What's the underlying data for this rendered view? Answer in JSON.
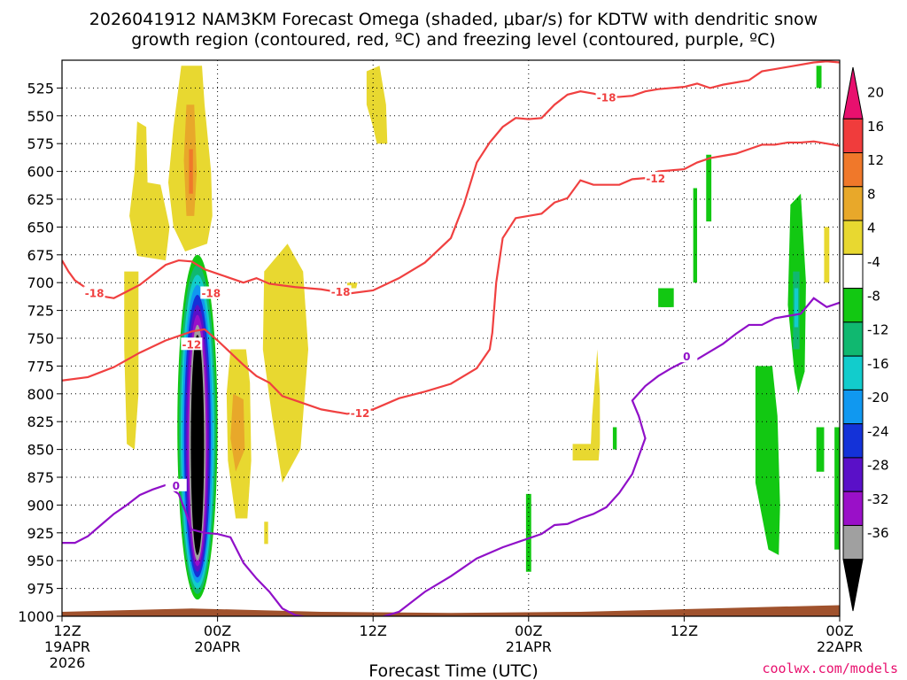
{
  "chart_data": {
    "type": "heatmap",
    "title_line1": "2026041912 NAM3KM Forecast Omega (shaded, μbar/s) for KDTW with dendritic snow",
    "title_line2": "growth region (contoured, red, ºC) and freezing level (contoured, purple, ºC)",
    "xlabel": "Forecast Time (UTC)",
    "credit": "coolwx.com/models",
    "x_range_hours": [
      0,
      60
    ],
    "y_range_hpa": [
      1000,
      500
    ],
    "x_ticks": [
      {
        "hour": 0,
        "label1": "12Z",
        "label2": "19APR",
        "label3": "2026"
      },
      {
        "hour": 12,
        "label1": "00Z",
        "label2": "20APR",
        "label3": ""
      },
      {
        "hour": 24,
        "label1": "12Z",
        "label2": "",
        "label3": ""
      },
      {
        "hour": 36,
        "label1": "00Z",
        "label2": "21APR",
        "label3": ""
      },
      {
        "hour": 48,
        "label1": "12Z",
        "label2": "",
        "label3": ""
      },
      {
        "hour": 60,
        "label1": "00Z",
        "label2": "22APR",
        "label3": ""
      }
    ],
    "y_ticks": [
      1000,
      975,
      950,
      925,
      900,
      875,
      850,
      825,
      800,
      775,
      750,
      725,
      700,
      675,
      650,
      625,
      600,
      575,
      550,
      525
    ],
    "colorbar": {
      "labels": [
        "20",
        "16",
        "12",
        "8",
        "4",
        "-4",
        "-8",
        "-12",
        "-16",
        "-20",
        "-24",
        "-28",
        "-32",
        "-36"
      ],
      "colors": [
        "#e8106e",
        "#f03c3c",
        "#f0782a",
        "#e8a82a",
        "#e8d830",
        "#ffffff",
        "#12c812",
        "#10b870",
        "#12cccc",
        "#1098f0",
        "#1432d8",
        "#5a10c8",
        "#9a10c8",
        "#a0a0a0",
        "#000000"
      ]
    },
    "dgz_contours": [
      {
        "label": "-18",
        "points": [
          [
            0,
            680
          ],
          [
            0.5,
            690
          ],
          [
            1,
            698
          ],
          [
            2,
            706
          ],
          [
            3,
            712
          ],
          [
            4,
            714
          ],
          [
            5,
            708
          ],
          [
            6,
            702
          ],
          [
            7,
            693
          ],
          [
            8,
            684
          ],
          [
            9,
            680
          ],
          [
            10,
            681
          ],
          [
            11,
            688
          ],
          [
            12,
            692
          ],
          [
            14,
            700
          ],
          [
            15,
            696
          ],
          [
            16,
            701
          ],
          [
            18,
            704
          ],
          [
            20,
            706
          ],
          [
            22,
            710
          ],
          [
            24,
            707
          ],
          [
            26,
            696
          ],
          [
            28,
            682
          ],
          [
            30,
            660
          ],
          [
            31,
            630
          ],
          [
            32,
            592
          ],
          [
            33,
            574
          ],
          [
            34,
            560
          ],
          [
            35,
            552
          ],
          [
            36,
            553
          ],
          [
            37,
            552
          ],
          [
            38,
            540
          ],
          [
            39,
            531
          ],
          [
            40,
            528
          ],
          [
            41,
            530
          ],
          [
            42,
            533
          ],
          [
            43,
            533
          ],
          [
            44,
            532
          ],
          [
            45,
            528
          ],
          [
            46,
            526
          ],
          [
            48,
            524
          ],
          [
            49,
            521
          ],
          [
            50,
            525
          ],
          [
            51,
            522
          ],
          [
            52,
            520
          ],
          [
            53,
            518
          ],
          [
            54,
            510
          ],
          [
            55,
            508
          ],
          [
            56,
            506
          ],
          [
            58,
            502
          ],
          [
            59,
            501
          ],
          [
            60,
            502
          ]
        ]
      },
      {
        "label": "-12",
        "points": [
          [
            0,
            788
          ],
          [
            2,
            785
          ],
          [
            4,
            776
          ],
          [
            6,
            763
          ],
          [
            8,
            752
          ],
          [
            10,
            744
          ],
          [
            11,
            742
          ],
          [
            12,
            752
          ],
          [
            13,
            763
          ],
          [
            14,
            774
          ],
          [
            15,
            784
          ],
          [
            16,
            790
          ],
          [
            17,
            802
          ],
          [
            18,
            806
          ],
          [
            20,
            814
          ],
          [
            22,
            818
          ],
          [
            24,
            814
          ],
          [
            26,
            804
          ],
          [
            28,
            798
          ],
          [
            30,
            791
          ],
          [
            32,
            777
          ],
          [
            33,
            760
          ],
          [
            33.2,
            745
          ],
          [
            33.5,
            700
          ],
          [
            34,
            660
          ],
          [
            35,
            642
          ],
          [
            37,
            638
          ],
          [
            38,
            628
          ],
          [
            39,
            624
          ],
          [
            40,
            608
          ],
          [
            41,
            612
          ],
          [
            42,
            612
          ],
          [
            43,
            612
          ],
          [
            44,
            607
          ],
          [
            45,
            606
          ],
          [
            46,
            600
          ],
          [
            47,
            599
          ],
          [
            48,
            598
          ],
          [
            49,
            592
          ],
          [
            50,
            588
          ],
          [
            51,
            586
          ],
          [
            52,
            584
          ],
          [
            53,
            580
          ],
          [
            54,
            576
          ],
          [
            55,
            576
          ],
          [
            56,
            574
          ],
          [
            57,
            574
          ],
          [
            58,
            573
          ],
          [
            59,
            575
          ],
          [
            60,
            577
          ]
        ]
      },
      {
        "label": "0",
        "points": [
          [
            0,
            934
          ],
          [
            1,
            934
          ],
          [
            2,
            928
          ],
          [
            3,
            918
          ],
          [
            4,
            908
          ],
          [
            5,
            900
          ],
          [
            6,
            891
          ],
          [
            7,
            886
          ],
          [
            8,
            882
          ],
          [
            9,
            890
          ],
          [
            9.5,
            905
          ],
          [
            10,
            922
          ],
          [
            11,
            925
          ],
          [
            12,
            926
          ],
          [
            13,
            929
          ],
          [
            14,
            952
          ],
          [
            15,
            966
          ],
          [
            16,
            978
          ],
          [
            17,
            993
          ],
          [
            18,
            999
          ],
          [
            20,
            1003
          ],
          [
            22,
            1003
          ],
          [
            24,
            1003
          ],
          [
            26,
            996
          ],
          [
            28,
            978
          ],
          [
            30,
            964
          ],
          [
            32,
            948
          ],
          [
            34,
            938
          ],
          [
            36,
            930
          ],
          [
            37,
            926
          ],
          [
            38,
            918
          ],
          [
            39,
            917
          ],
          [
            40,
            912
          ],
          [
            41,
            908
          ],
          [
            42,
            902
          ],
          [
            43,
            889
          ],
          [
            44,
            872
          ],
          [
            45,
            840
          ],
          [
            44.5,
            820
          ],
          [
            44,
            806
          ],
          [
            45,
            793
          ],
          [
            46,
            784
          ],
          [
            47,
            777
          ],
          [
            48,
            771
          ],
          [
            49,
            769
          ],
          [
            50,
            762
          ],
          [
            51,
            755
          ],
          [
            52,
            746
          ],
          [
            53,
            738
          ],
          [
            54,
            738
          ],
          [
            55,
            732
          ],
          [
            56,
            730
          ],
          [
            57,
            728
          ],
          [
            58,
            714
          ],
          [
            59,
            722
          ],
          [
            60,
            718
          ]
        ]
      }
    ],
    "dgz_label_positions": [
      {
        "contour": 0,
        "hour": 2.5,
        "hpa": 709
      },
      {
        "contour": 0,
        "hour": 11.5,
        "hpa": 709
      },
      {
        "contour": 0,
        "hour": 21.5,
        "hpa": 708
      },
      {
        "contour": 0,
        "hour": 42,
        "hpa": 533
      },
      {
        "contour": 1,
        "hour": 10,
        "hpa": 755
      },
      {
        "contour": 1,
        "hour": 23,
        "hpa": 817
      },
      {
        "contour": 1,
        "hour": 45.8,
        "hpa": 606
      },
      {
        "contour": 2,
        "hour": 8.8,
        "hpa": 882
      },
      {
        "contour": 2,
        "hour": 48.2,
        "hpa": 766
      }
    ],
    "omega_regions": [
      {
        "name": "lift-core",
        "center_hour": 10.4,
        "center_hpa": 835,
        "values": [
          -4,
          -8,
          -12,
          -16,
          -20,
          -24,
          -28,
          -32,
          -36
        ]
      },
      {
        "name": "subsidence-upper",
        "center_hour": 9.5,
        "center_hpa": 600,
        "values": [
          4,
          8,
          12
        ]
      },
      {
        "name": "subsidence-mid",
        "center_hour": 16.5,
        "center_hpa": 790,
        "values": [
          4,
          8
        ]
      },
      {
        "name": "lift-east",
        "center_hour": 56.5,
        "center_hpa": 720,
        "values": [
          -4,
          -8,
          -12
        ]
      }
    ]
  }
}
